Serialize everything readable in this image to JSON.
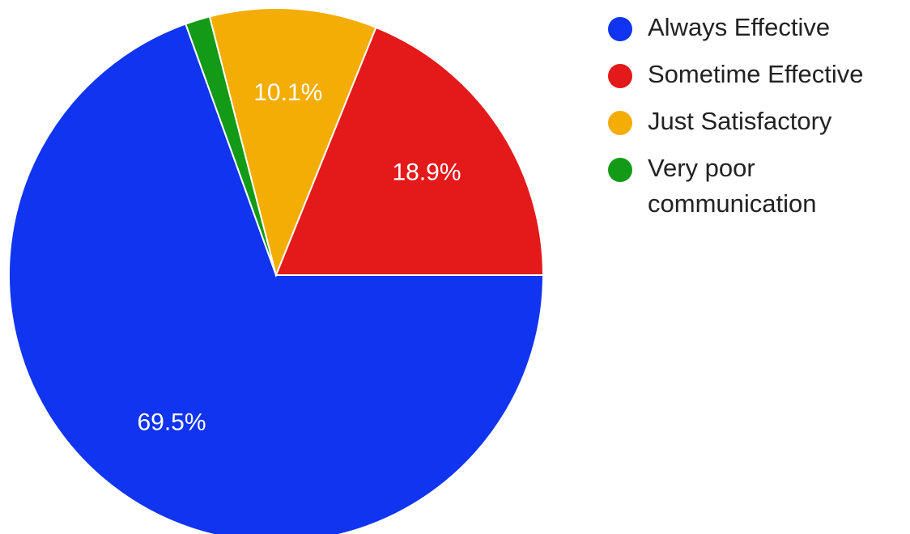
{
  "chart_data": {
    "type": "pie",
    "title": "",
    "legend_position": "right",
    "start_angle_deg": 0,
    "direction": "clockwise",
    "slices": [
      {
        "label": "Always Effective",
        "legend_lines": [
          "Always Effective"
        ],
        "value": 69.5,
        "display": "69.5%",
        "color": "#1034f0"
      },
      {
        "label": "Very poor communication",
        "legend_lines": [
          "Very poor",
          "communication"
        ],
        "value": 1.5,
        "display": "",
        "color": "#139a17"
      },
      {
        "label": "Just Satisfactory",
        "legend_lines": [
          "Just Satisfactory"
        ],
        "value": 10.1,
        "display": "10.1%",
        "color": "#f3ad05"
      },
      {
        "label": "Sometime Effective",
        "legend_lines": [
          "Sometime Effective"
        ],
        "value": 18.9,
        "display": "18.9%",
        "color": "#e3191a"
      }
    ],
    "legend_order": [
      0,
      3,
      2,
      1
    ]
  }
}
